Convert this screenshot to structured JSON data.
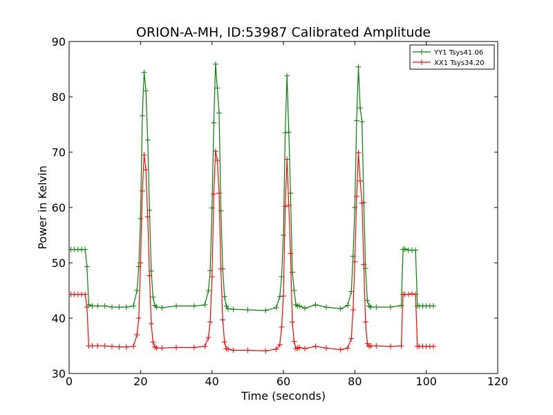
{
  "chart_data": {
    "type": "line",
    "title": "ORION-A-MH, ID:53987 Calibrated Amplitude",
    "xlabel": "Time (seconds)",
    "ylabel": "Power in Kelvin",
    "xlim": [
      0,
      120
    ],
    "ylim": [
      30,
      90
    ],
    "xticks": [
      0,
      20,
      40,
      60,
      80,
      100,
      120
    ],
    "yticks": [
      30,
      40,
      50,
      60,
      70,
      80,
      90
    ],
    "grid": false,
    "legend_position": "top-right",
    "marker": "plus",
    "series": [
      {
        "name": "YY1 Tsys41.06",
        "color": "#008000",
        "x": [
          0.5,
          1.5,
          2.5,
          3.5,
          4.5,
          5.0,
          5.5,
          6.5,
          8,
          10,
          12,
          14,
          16,
          18,
          19.0,
          19.5,
          20.0,
          20.5,
          21.0,
          21.5,
          22.0,
          22.5,
          23.0,
          23.5,
          24.0,
          24.5,
          26,
          30,
          35,
          38,
          39.0,
          39.5,
          40.0,
          40.5,
          41.0,
          41.5,
          42.0,
          42.5,
          43.0,
          43.5,
          44.0,
          44.5,
          46,
          50,
          55,
          58,
          59.0,
          59.5,
          60.0,
          60.5,
          61.0,
          61.5,
          62.0,
          62.5,
          63.0,
          63.5,
          64.0,
          64.5,
          66,
          69,
          72,
          76,
          78,
          79.0,
          79.5,
          80.0,
          80.5,
          81.0,
          81.5,
          82.0,
          82.5,
          83.0,
          83.5,
          84.0,
          84.5,
          86,
          90,
          93.0,
          93.5,
          94.0,
          95.0,
          96.0,
          97.0,
          97.5,
          98.0,
          99.0,
          100.0,
          101.0,
          102.0
        ],
        "y": [
          52.4,
          52.4,
          52.4,
          52.4,
          52.4,
          49.3,
          42.4,
          42.2,
          42.2,
          42.2,
          42.0,
          42.0,
          42.0,
          42.2,
          45.0,
          49.3,
          58.0,
          76.6,
          84.4,
          81.1,
          72.2,
          59.5,
          48.5,
          43.8,
          42.3,
          42.0,
          41.9,
          42.2,
          42.2,
          42.4,
          45.0,
          48.6,
          59.9,
          75.3,
          85.9,
          81.6,
          77.1,
          59.4,
          48.9,
          43.9,
          42.2,
          41.7,
          41.6,
          41.5,
          41.4,
          41.9,
          43.9,
          47.5,
          55.0,
          73.5,
          83.8,
          73.6,
          62.6,
          48.3,
          45.0,
          42.4,
          42.2,
          42.2,
          41.8,
          42.4,
          42.0,
          41.7,
          42.3,
          44.8,
          51.2,
          60.0,
          75.7,
          85.4,
          78.0,
          75.5,
          60.9,
          49.0,
          43.2,
          42.2,
          42.0,
          42.0,
          42.0,
          42.3,
          52.4,
          52.5,
          52.3,
          52.3,
          52.3,
          42.2,
          42.2,
          42.2,
          42.2,
          42.2,
          42.2
        ]
      },
      {
        "name": "XX1 Tsys34.20",
        "color": "#ff0000",
        "x": [
          0.5,
          1.5,
          2.5,
          3.5,
          4.5,
          5.0,
          5.5,
          6.5,
          8,
          10,
          12,
          14,
          16,
          18,
          19.0,
          19.5,
          20.0,
          20.5,
          21.0,
          21.5,
          22.0,
          22.5,
          23.0,
          23.5,
          24.0,
          24.5,
          26,
          30,
          35,
          38,
          39.0,
          39.5,
          40.0,
          40.5,
          41.0,
          41.5,
          42.0,
          42.5,
          43.0,
          43.5,
          44.0,
          44.5,
          46,
          50,
          55,
          58,
          59.0,
          59.5,
          60.0,
          60.5,
          61.0,
          61.5,
          62.0,
          62.5,
          63.0,
          63.5,
          64.0,
          64.5,
          66,
          69,
          72,
          76,
          78,
          79.0,
          79.5,
          80.0,
          80.5,
          81.0,
          81.5,
          82.0,
          82.5,
          83.0,
          83.5,
          84.0,
          84.5,
          86,
          90,
          93.0,
          93.5,
          94.0,
          95.0,
          96.0,
          97.0,
          97.5,
          98.0,
          99.0,
          100.0,
          101.0,
          102.0
        ],
        "y": [
          44.3,
          44.3,
          44.3,
          44.3,
          44.3,
          42.0,
          35.0,
          35.0,
          35.0,
          35.0,
          34.9,
          34.8,
          34.8,
          34.9,
          37.0,
          40.0,
          50.0,
          63.0,
          69.5,
          66.8,
          58.3,
          47.7,
          39.0,
          35.7,
          34.8,
          34.6,
          34.6,
          34.7,
          34.7,
          34.9,
          36.5,
          39.3,
          47.5,
          62.4,
          70.2,
          68.5,
          62.6,
          48.9,
          39.7,
          35.7,
          34.5,
          34.4,
          34.2,
          34.2,
          34.1,
          34.4,
          35.2,
          38.4,
          44.0,
          60.2,
          68.7,
          60.4,
          51.7,
          39.3,
          35.8,
          34.5,
          34.6,
          34.7,
          34.5,
          34.9,
          34.6,
          34.3,
          34.6,
          36.3,
          41.5,
          50.2,
          62.0,
          69.9,
          64.8,
          60.8,
          49.7,
          39.3,
          35.4,
          34.9,
          35.0,
          35.0,
          34.9,
          35.0,
          44.3,
          44.3,
          44.3,
          44.4,
          44.3,
          34.9,
          34.9,
          34.9,
          34.9,
          34.9,
          34.9
        ]
      }
    ]
  }
}
